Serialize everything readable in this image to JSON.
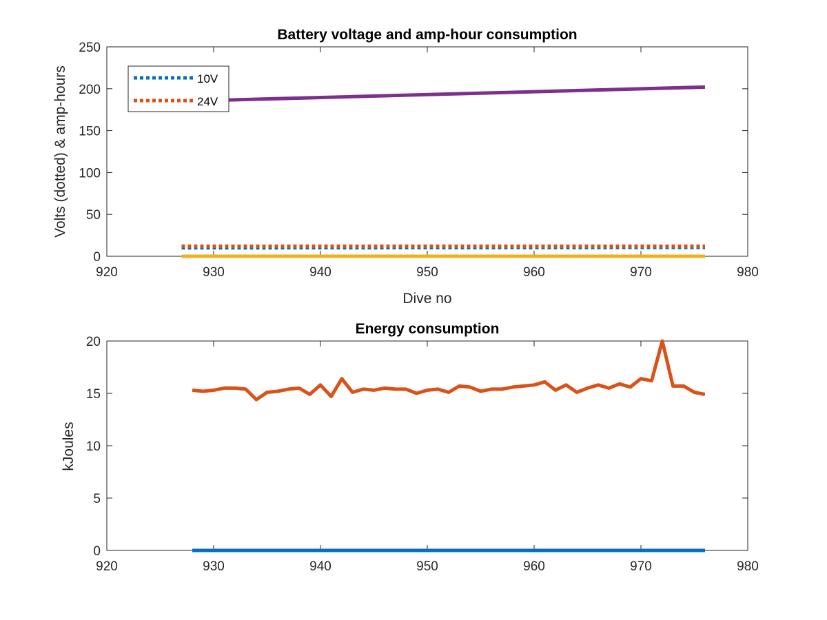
{
  "chart_data": [
    {
      "type": "line",
      "title": "Battery voltage and amp-hour consumption",
      "xlabel": "Dive no",
      "ylabel": "Volts (dotted) & amp-hours",
      "xlim": [
        920,
        980
      ],
      "ylim": [
        0,
        250
      ],
      "xticks": [
        920,
        930,
        940,
        950,
        960,
        970,
        980
      ],
      "yticks": [
        0,
        50,
        100,
        150,
        200,
        250
      ],
      "legend_placement": "top-left",
      "grid": false,
      "series": [
        {
          "name": "10V",
          "style": "dotted",
          "color": "#0072BD",
          "x": [
            927,
            976
          ],
          "y": [
            10,
            10.5
          ]
        },
        {
          "name": "24V",
          "style": "dotted",
          "color": "#D95319",
          "x": [
            927,
            976
          ],
          "y": [
            12,
            12
          ]
        },
        {
          "style": "solid",
          "color": "#7E2F8E",
          "x": [
            927,
            976
          ],
          "y": [
            185,
            202
          ]
        },
        {
          "style": "solid",
          "color": "#EDB120",
          "x": [
            927,
            976
          ],
          "y": [
            0,
            0
          ]
        }
      ]
    },
    {
      "type": "line",
      "title": "Energy consumption",
      "xlabel": "",
      "ylabel": "kJoules",
      "xlim": [
        920,
        980
      ],
      "ylim": [
        0,
        20
      ],
      "xticks": [
        920,
        930,
        940,
        950,
        960,
        970,
        980
      ],
      "yticks": [
        0,
        5,
        10,
        15,
        20
      ],
      "grid": false,
      "series": [
        {
          "style": "solid",
          "color": "#0072BD",
          "x": [
            928,
            976
          ],
          "y": [
            0,
            0
          ]
        },
        {
          "style": "solid",
          "color": "#D95319",
          "x": [
            928,
            929,
            930,
            931,
            932,
            933,
            934,
            935,
            936,
            937,
            938,
            939,
            940,
            941,
            942,
            943,
            944,
            945,
            946,
            947,
            948,
            949,
            950,
            951,
            952,
            953,
            954,
            955,
            956,
            957,
            958,
            959,
            960,
            961,
            962,
            963,
            964,
            965,
            966,
            967,
            968,
            969,
            970,
            971,
            972,
            973,
            974,
            975,
            976
          ],
          "y": [
            15.3,
            15.2,
            15.3,
            15.5,
            15.5,
            15.4,
            14.4,
            15.1,
            15.2,
            15.4,
            15.5,
            14.9,
            15.8,
            14.7,
            16.4,
            15.1,
            15.4,
            15.3,
            15.5,
            15.4,
            15.4,
            15.0,
            15.3,
            15.4,
            15.1,
            15.7,
            15.6,
            15.2,
            15.4,
            15.4,
            15.6,
            15.7,
            15.8,
            16.1,
            15.3,
            15.8,
            15.1,
            15.5,
            15.8,
            15.5,
            15.9,
            15.6,
            16.4,
            16.2,
            20.0,
            15.7,
            15.7,
            15.1,
            14.9
          ]
        }
      ]
    }
  ]
}
